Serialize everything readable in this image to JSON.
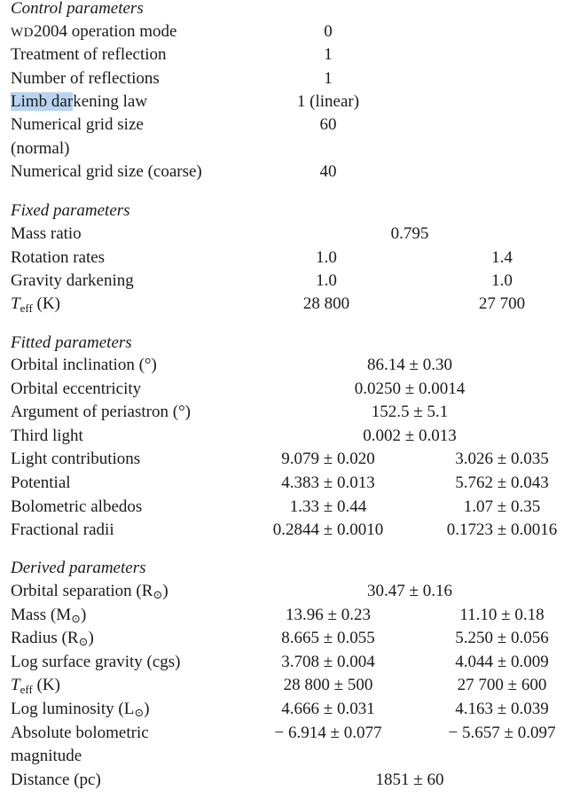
{
  "sections": {
    "control": "Control parameters",
    "fixed": "Fixed parameters",
    "fitted": "Fitted parameters",
    "derived": "Derived parameters"
  },
  "control": {
    "wd_prefix": "WD",
    "wd_label": "2004 operation mode",
    "wd_value": "0",
    "reflection_treatment": "Treatment of reflection",
    "reflection_treatment_value": "1",
    "reflections_number": "Number of reflections",
    "reflections_number_value": "1",
    "limb_highlight": "Limb dar",
    "limb_rest": "kening law",
    "limb_value": "1 (linear)",
    "grid_normal_line1": "Numerical grid size",
    "grid_normal_line2": "(normal)",
    "grid_normal_value": "60",
    "grid_coarse": "Numerical grid size (coarse)",
    "grid_coarse_value": "40"
  },
  "fixed": {
    "mass_ratio": "Mass ratio",
    "mass_ratio_value": "0.795",
    "rotation": "Rotation rates",
    "rotation_a": "1.0",
    "rotation_b": "1.4",
    "gravity": "Gravity darkening",
    "gravity_a": "1.0",
    "gravity_b": "1.0",
    "teff_T": "T",
    "teff_sub": "eff",
    "teff_unit": " (K)",
    "teff_a": "28 800",
    "teff_b": "27 700"
  },
  "fitted": {
    "inclination": "Orbital inclination (°)",
    "inclination_value": "86.14 ± 0.30",
    "eccentricity": "Orbital eccentricity",
    "eccentricity_value": "0.0250 ± 0.0014",
    "periastron": "Argument of periastron (°)",
    "periastron_value": "152.5 ± 5.1",
    "third_light": "Third light",
    "third_light_value": "0.002 ± 0.013",
    "light": "Light contributions",
    "light_a": "9.079 ± 0.020",
    "light_b": "3.026 ± 0.035",
    "potential": "Potential",
    "potential_a": "4.383 ± 0.013",
    "potential_b": "5.762 ± 0.043",
    "albedo": "Bolometric albedos",
    "albedo_a": "1.33 ± 0.44",
    "albedo_b": "1.07 ± 0.35",
    "radii": "Fractional radii",
    "radii_a": "0.2844 ± 0.0010",
    "radii_b": "0.1723 ± 0.0016"
  },
  "derived": {
    "separation": "Orbital separation (R",
    "separation_value": "30.47 ± 0.16",
    "mass": "Mass (M",
    "mass_a": "13.96 ± 0.23",
    "mass_b": "11.10 ± 0.18",
    "radius": "Radius (R",
    "radius_a": "8.665 ± 0.055",
    "radius_b": "5.250 ± 0.056",
    "logg": "Log surface gravity (cgs)",
    "logg_a": "3.708 ± 0.004",
    "logg_b": "4.044 ± 0.009",
    "teff_T": "T",
    "teff_sub": "eff",
    "teff_unit": " (K)",
    "teff_a": "28 800 ± 500",
    "teff_b": "27 700 ± 600",
    "lum": "Log luminosity (L",
    "lum_a": "4.666 ± 0.031",
    "lum_b": "4.163 ± 0.039",
    "mbol_line1": "Absolute bolometric",
    "mbol_line2": "magnitude",
    "mbol_a": "− 6.914 ± 0.077",
    "mbol_b": "− 5.657 ± 0.097",
    "distance": "Distance (pc)",
    "distance_value": "1851 ± 60"
  },
  "sun_symbol": "⊙",
  "close_paren": ")"
}
